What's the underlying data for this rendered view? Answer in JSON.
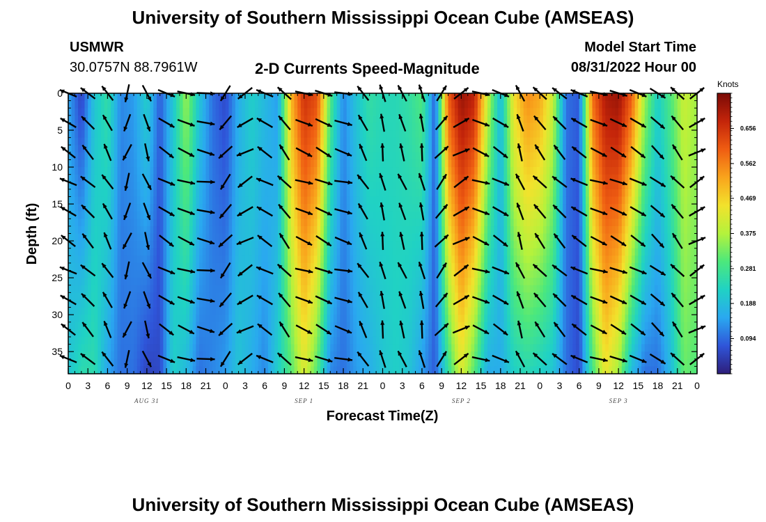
{
  "header": {
    "title": "University of Southern Mississippi Ocean Cube (AMSEAS)",
    "station": "USMWR",
    "location": "30.0757N  88.7961W",
    "subtitle": "2-D Currents Speed-Magnitude",
    "model_start_label": "Model Start Time",
    "model_start_value": "08/31/2022 Hour 00"
  },
  "footer": {
    "title": "University of Southern Mississippi Ocean Cube (AMSEAS)"
  },
  "chart_data": {
    "type": "heatmap",
    "title": "2-D Currents Speed-Magnitude",
    "xlabel": "Forecast Time(Z)",
    "ylabel": "Depth (ft)",
    "x_unit": "hours since 08/31/2022 00Z",
    "xlim": [
      0,
      96
    ],
    "ylim": [
      0,
      38
    ],
    "y_inverted": true,
    "x_ticks": [
      0,
      3,
      6,
      9,
      12,
      15,
      18,
      21,
      24,
      27,
      30,
      33,
      36,
      39,
      42,
      45,
      48,
      51,
      54,
      57,
      60,
      63,
      66,
      69,
      72,
      75,
      78,
      81,
      84,
      87,
      90,
      93,
      96
    ],
    "x_tick_labels": [
      "0",
      "3",
      "6",
      "9",
      "12",
      "15",
      "18",
      "21",
      "0",
      "3",
      "6",
      "9",
      "12",
      "15",
      "18",
      "21",
      "0",
      "3",
      "6",
      "9",
      "12",
      "15",
      "18",
      "21",
      "0",
      "3",
      "6",
      "9",
      "12",
      "15",
      "18",
      "21",
      "0"
    ],
    "date_labels": [
      {
        "hour": 12,
        "text": "AUG 31"
      },
      {
        "hour": 36,
        "text": "SEP 1"
      },
      {
        "hour": 60,
        "text": "SEP 2"
      },
      {
        "hour": 84,
        "text": "SEP 3"
      }
    ],
    "y_ticks": [
      0,
      5,
      10,
      15,
      20,
      25,
      30,
      35
    ],
    "y_tick_labels": [
      "0",
      "5",
      "10",
      "15",
      "20",
      "25",
      "30",
      "35"
    ],
    "colorbar": {
      "unit": "Knots",
      "min": 0.0,
      "max": 0.75,
      "ticks": [
        0.094,
        0.188,
        0.281,
        0.375,
        0.469,
        0.562,
        0.656
      ],
      "tick_labels": [
        "0.094",
        "0.188",
        "0.281",
        "0.375",
        "0.469",
        "0.562",
        "0.656"
      ],
      "colormap": [
        "#2e1e7a",
        "#2f55d9",
        "#2aa8f0",
        "#20d2c4",
        "#4ce87c",
        "#b4f23c",
        "#f2e22c",
        "#f9a41c",
        "#ef5d12",
        "#c4250a",
        "#7a0a06"
      ]
    },
    "speed_columns": [
      {
        "hour": 0,
        "surface": 0.15,
        "bottom": 0.2
      },
      {
        "hour": 2,
        "surface": 0.05,
        "bottom": 0.25
      },
      {
        "hour": 4,
        "surface": 0.2,
        "bottom": 0.25
      },
      {
        "hour": 6,
        "surface": 0.26,
        "bottom": 0.15
      },
      {
        "hour": 8,
        "surface": 0.12,
        "bottom": 0.1
      },
      {
        "hour": 10,
        "surface": 0.14,
        "bottom": 0.1
      },
      {
        "hour": 12,
        "surface": 0.22,
        "bottom": 0.05
      },
      {
        "hour": 14,
        "surface": 0.08,
        "bottom": 0.06
      },
      {
        "hour": 16,
        "surface": 0.2,
        "bottom": 0.22
      },
      {
        "hour": 18,
        "surface": 0.36,
        "bottom": 0.18
      },
      {
        "hour": 20,
        "surface": 0.2,
        "bottom": 0.1
      },
      {
        "hour": 22,
        "surface": 0.1,
        "bottom": 0.12
      },
      {
        "hour": 24,
        "surface": 0.06,
        "bottom": 0.14
      },
      {
        "hour": 26,
        "surface": 0.16,
        "bottom": 0.2
      },
      {
        "hour": 28,
        "surface": 0.22,
        "bottom": 0.16
      },
      {
        "hour": 30,
        "surface": 0.18,
        "bottom": 0.12
      },
      {
        "hour": 32,
        "surface": 0.14,
        "bottom": 0.22
      },
      {
        "hour": 34,
        "surface": 0.5,
        "bottom": 0.3
      },
      {
        "hour": 36,
        "surface": 0.66,
        "bottom": 0.42
      },
      {
        "hour": 38,
        "surface": 0.62,
        "bottom": 0.3
      },
      {
        "hour": 40,
        "surface": 0.3,
        "bottom": 0.12
      },
      {
        "hour": 42,
        "surface": 0.12,
        "bottom": 0.1
      },
      {
        "hour": 44,
        "surface": 0.2,
        "bottom": 0.14
      },
      {
        "hour": 46,
        "surface": 0.26,
        "bottom": 0.16
      },
      {
        "hour": 48,
        "surface": 0.24,
        "bottom": 0.2
      },
      {
        "hour": 50,
        "surface": 0.24,
        "bottom": 0.22
      },
      {
        "hour": 52,
        "surface": 0.26,
        "bottom": 0.2
      },
      {
        "hour": 54,
        "surface": 0.3,
        "bottom": 0.14
      },
      {
        "hour": 56,
        "surface": 0.08,
        "bottom": 0.08
      },
      {
        "hour": 58,
        "surface": 0.6,
        "bottom": 0.26
      },
      {
        "hour": 60,
        "surface": 0.72,
        "bottom": 0.42
      },
      {
        "hour": 62,
        "surface": 0.68,
        "bottom": 0.3
      },
      {
        "hour": 64,
        "surface": 0.4,
        "bottom": 0.16
      },
      {
        "hour": 66,
        "surface": 0.18,
        "bottom": 0.16
      },
      {
        "hour": 68,
        "surface": 0.45,
        "bottom": 0.22
      },
      {
        "hour": 70,
        "surface": 0.55,
        "bottom": 0.24
      },
      {
        "hour": 72,
        "surface": 0.52,
        "bottom": 0.22
      },
      {
        "hour": 74,
        "surface": 0.4,
        "bottom": 0.2
      },
      {
        "hour": 76,
        "surface": 0.1,
        "bottom": 0.1
      },
      {
        "hour": 78,
        "surface": 0.08,
        "bottom": 0.06
      },
      {
        "hour": 80,
        "surface": 0.58,
        "bottom": 0.28
      },
      {
        "hour": 82,
        "surface": 0.7,
        "bottom": 0.44
      },
      {
        "hour": 84,
        "surface": 0.72,
        "bottom": 0.36
      },
      {
        "hour": 86,
        "surface": 0.6,
        "bottom": 0.18
      },
      {
        "hour": 88,
        "surface": 0.36,
        "bottom": 0.1
      },
      {
        "hour": 90,
        "surface": 0.22,
        "bottom": 0.1
      },
      {
        "hour": 92,
        "surface": 0.3,
        "bottom": 0.18
      },
      {
        "hour": 94,
        "surface": 0.4,
        "bottom": 0.32
      },
      {
        "hour": 96,
        "surface": 0.36,
        "bottom": 0.3
      }
    ],
    "vector_depths": [
      0,
      4,
      8,
      12,
      16,
      20,
      24,
      28,
      32,
      36
    ],
    "vector_direction_deg": [
      {
        "hour": 0,
        "direction": 300
      },
      {
        "hour": 3,
        "direction": 315
      },
      {
        "hour": 6,
        "direction": 330
      },
      {
        "hour": 9,
        "direction": 200
      },
      {
        "hour": 12,
        "direction": 160
      },
      {
        "hour": 15,
        "direction": 120
      },
      {
        "hour": 18,
        "direction": 110
      },
      {
        "hour": 21,
        "direction": 100
      },
      {
        "hour": 24,
        "direction": 220
      },
      {
        "hour": 27,
        "direction": 240
      },
      {
        "hour": 30,
        "direction": 300
      },
      {
        "hour": 33,
        "direction": 320
      },
      {
        "hour": 36,
        "direction": 110
      },
      {
        "hour": 39,
        "direction": 115
      },
      {
        "hour": 42,
        "direction": 105
      },
      {
        "hour": 45,
        "direction": 330
      },
      {
        "hour": 48,
        "direction": 350
      },
      {
        "hour": 51,
        "direction": 340
      },
      {
        "hour": 54,
        "direction": 350
      },
      {
        "hour": 57,
        "direction": 40
      },
      {
        "hour": 60,
        "direction": 60
      },
      {
        "hour": 63,
        "direction": 110
      },
      {
        "hour": 66,
        "direction": 120
      },
      {
        "hour": 69,
        "direction": 340
      },
      {
        "hour": 72,
        "direction": 320
      },
      {
        "hour": 75,
        "direction": 315
      },
      {
        "hour": 78,
        "direction": 300
      },
      {
        "hour": 81,
        "direction": 110
      },
      {
        "hour": 84,
        "direction": 115
      },
      {
        "hour": 87,
        "direction": 120
      },
      {
        "hour": 90,
        "direction": 130
      },
      {
        "hour": 93,
        "direction": 320
      },
      {
        "hour": 96,
        "direction": 60
      }
    ]
  }
}
